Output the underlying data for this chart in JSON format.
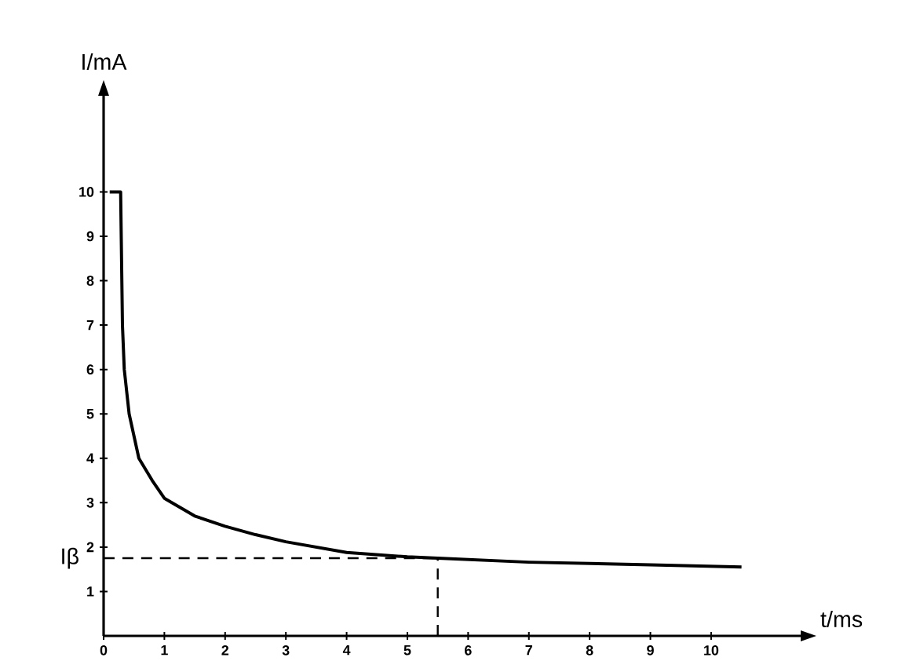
{
  "chart_data": {
    "type": "line",
    "xlabel": "t/ms",
    "ylabel": "I/mA",
    "x": [
      0.1,
      0.28,
      0.29,
      0.31,
      0.34,
      0.42,
      0.58,
      0.8,
      1,
      1.5,
      2,
      2.5,
      3,
      4,
      5,
      5.5,
      7,
      9,
      10.5
    ],
    "series": [
      {
        "color": "#000000",
        "values": [
          10,
          10,
          9,
          7,
          6,
          5,
          4,
          3.5,
          3.1,
          2.7,
          2.47,
          2.28,
          2.12,
          1.88,
          1.78,
          1.75,
          1.66,
          1.6,
          1.55
        ]
      }
    ],
    "xlim": [
      0,
      11.5
    ],
    "ylim": [
      0,
      12.2
    ],
    "xticks": [
      0,
      1,
      2,
      3,
      4,
      5,
      6,
      7,
      8,
      9,
      10
    ],
    "yticks": [
      1,
      2,
      3,
      4,
      5,
      6,
      7,
      8,
      9,
      10
    ],
    "ref_lines": [
      {
        "axis": "y",
        "value": 1.75,
        "label": "Iβ",
        "line_style": "dashed"
      },
      {
        "axis": "x",
        "value": 5.5,
        "line_style": "dashed"
      }
    ],
    "grid": false,
    "marker": "none",
    "line_style": "solid"
  }
}
